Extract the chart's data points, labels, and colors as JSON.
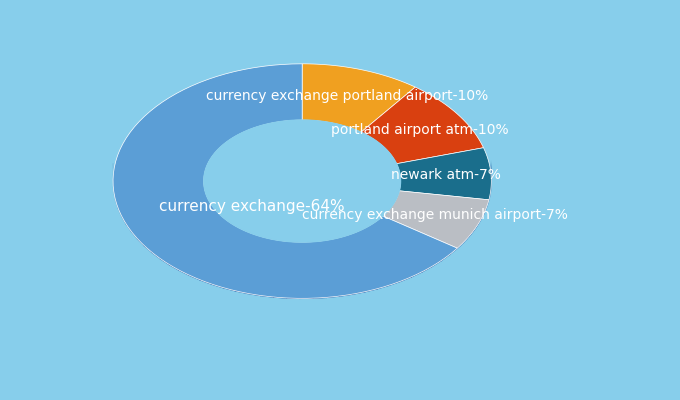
{
  "labels": [
    "currency exchange portland airport",
    "portland airport atm",
    "newark atm",
    "currency exchange munich airport",
    "currency exchange"
  ],
  "values": [
    10,
    10,
    7,
    7,
    64
  ],
  "colors": [
    "#5B9ED6",
    "#E8651A",
    "#1A6E8C",
    "#BABEC4",
    "#5B9ED6"
  ],
  "pct_labels": [
    "10%",
    "10%",
    "7%",
    "7%",
    "64%"
  ],
  "background_color": "#87CEEB",
  "shadow_color": "#2255A0",
  "label_fontsize": 11,
  "label_color": "white",
  "orange_color": "#F0A020",
  "red_color": "#D94010",
  "teal_color": "#1A6E8C",
  "gray_color": "#BABEC4",
  "blue_color": "#5B9ED6",
  "dark_blue": "#2255A0"
}
